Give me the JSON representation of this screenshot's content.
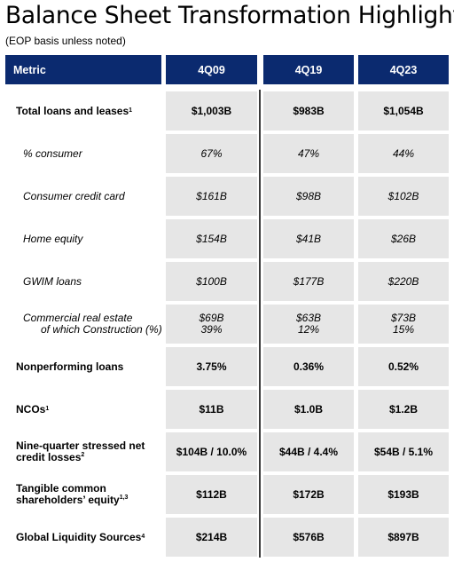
{
  "title": "Balance Sheet Transformation Highlights",
  "subtitle": "(EOP basis unless noted)",
  "header": {
    "metric": "Metric",
    "col1": "4Q09",
    "col2": "4Q19",
    "col3": "4Q23"
  },
  "rows": [
    {
      "label": "Total loans and leases",
      "sup": "1",
      "v1": "$1,003B",
      "v2": "$983B",
      "v3": "$1,054B"
    },
    {
      "label": "% consumer",
      "v1": "67%",
      "v2": "47%",
      "v3": "44%"
    },
    {
      "label": "Consumer credit card",
      "v1": "$161B",
      "v2": "$98B",
      "v3": "$102B"
    },
    {
      "label": "Home equity",
      "v1": "$154B",
      "v2": "$41B",
      "v3": "$26B"
    },
    {
      "label": "GWIM loans",
      "v1": "$100B",
      "v2": "$177B",
      "v3": "$220B"
    },
    {
      "label": "Commercial real estate",
      "label2": "of which Construction (%)",
      "v1": "$69B",
      "v1b": "39%",
      "v2": "$63B",
      "v2b": "12%",
      "v3": "$73B",
      "v3b": "15%"
    },
    {
      "label": "Nonperforming loans",
      "v1": "3.75%",
      "v2": "0.36%",
      "v3": "0.52%"
    },
    {
      "label": "NCOs",
      "sup": "1",
      "v1": "$11B",
      "v2": "$1.0B",
      "v3": "$1.2B"
    },
    {
      "label": "Nine-quarter stressed net",
      "label2": "credit losses",
      "sup": "2",
      "v1": "$104B / 10.0%",
      "v2": "$44B / 4.4%",
      "v3": "$54B / 5.1%"
    },
    {
      "label": "Tangible common",
      "label2": "shareholders’ equity",
      "sup": "1,3",
      "v1": "$112B",
      "v2": "$172B",
      "v3": "$193B"
    },
    {
      "label": "Global Liquidity Sources",
      "sup": "4",
      "v1": "$214B",
      "v2": "$576B",
      "v3": "$897B"
    }
  ]
}
